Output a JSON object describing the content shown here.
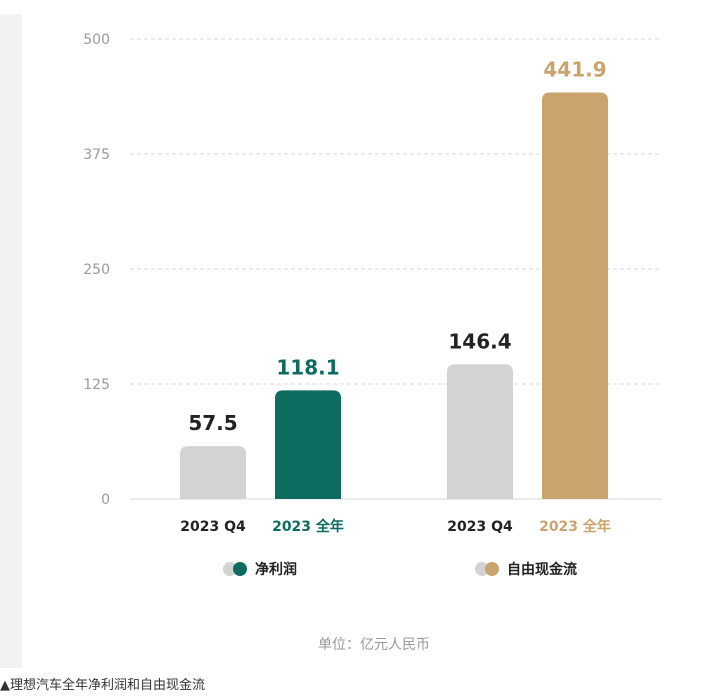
{
  "chart_data": {
    "type": "bar",
    "ylim": [
      0,
      500
    ],
    "yticks": [
      0,
      125,
      250,
      375,
      500
    ],
    "groups": [
      {
        "name": "净利润",
        "bars": [
          {
            "category": "2023 Q4",
            "value": 57.5,
            "label": "57.5",
            "color": "#d3d3d3",
            "label_color": "#222222",
            "cat_color": "#222222"
          },
          {
            "category": "2023 全年",
            "value": 118.1,
            "label": "118.1",
            "color": "#0e6b5f",
            "label_color": "#0e6b5f",
            "cat_color": "#0e6b5f"
          }
        ],
        "legend_colors": [
          "#d3d3d3",
          "#0e6b5f"
        ]
      },
      {
        "name": "自由现金流",
        "bars": [
          {
            "category": "2023 Q4",
            "value": 146.4,
            "label": "146.4",
            "color": "#d3d3d3",
            "label_color": "#222222",
            "cat_color": "#222222"
          },
          {
            "category": "2023 全年",
            "value": 441.9,
            "label": "441.9",
            "color": "#c9a46f",
            "label_color": "#c9a46f",
            "cat_color": "#c9a46f"
          }
        ],
        "legend_colors": [
          "#d3d3d3",
          "#c9a46f"
        ]
      }
    ],
    "unit_note": "单位：亿元人民币",
    "grid": true
  },
  "caption": "▲理想汽车全年净利润和自由现金流"
}
